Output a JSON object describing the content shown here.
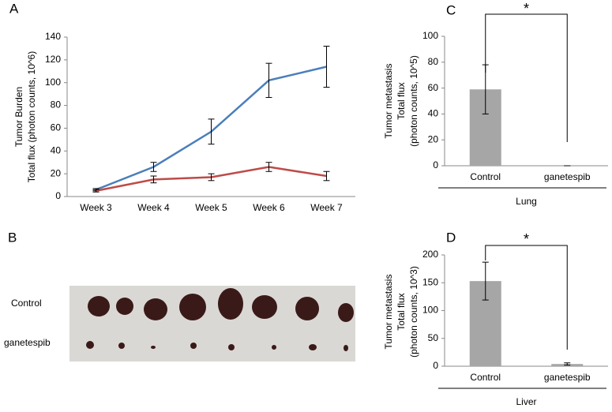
{
  "chart_data": [
    {
      "type": "line",
      "panel": "A",
      "ylabel": [
        "Tumor Burden",
        "Total flux (photon counts, 10^6)"
      ],
      "categories": [
        "Week 3",
        "Week 4",
        "Week 5",
        "Week 6",
        "Week 7"
      ],
      "series": [
        {
          "color": "#4a7ebb",
          "values": [
            6,
            26,
            57,
            102,
            114
          ],
          "errors": [
            1,
            4,
            11,
            15,
            18
          ]
        },
        {
          "color": "#be4b48",
          "values": [
            5,
            15,
            17,
            26,
            18
          ],
          "errors": [
            1,
            3,
            3,
            4,
            4
          ]
        }
      ],
      "ylim": [
        0,
        140
      ],
      "yticks": [
        0,
        20,
        40,
        60,
        80,
        100,
        120,
        140
      ]
    },
    {
      "type": "bar",
      "panel": "C",
      "ylabel": [
        "Tumor metastasis",
        "Total flux",
        "(photon counts, 10^5)"
      ],
      "categories": [
        "Control",
        "ganetespib"
      ],
      "group": "Lung",
      "values": [
        59,
        0
      ],
      "errors": [
        19,
        0
      ],
      "color": "#a6a6a6",
      "significance": "*",
      "ylim": [
        0,
        100
      ],
      "yticks": [
        0,
        20,
        40,
        60,
        80,
        100
      ]
    },
    {
      "type": "bar",
      "panel": "D",
      "ylabel": [
        "Tumor metastasis",
        "Total flux",
        "(photon counts, 10^3)"
      ],
      "categories": [
        "Control",
        "ganetespib"
      ],
      "group": "Liver",
      "values": [
        153,
        4
      ],
      "errors": [
        34,
        2
      ],
      "color": "#a6a6a6",
      "significance": "*",
      "ylim": [
        0,
        200
      ],
      "yticks": [
        0,
        50,
        100,
        150,
        200
      ]
    }
  ],
  "photo_panel": {
    "panel": "B",
    "rows": [
      "Control",
      "ganetespib"
    ]
  }
}
